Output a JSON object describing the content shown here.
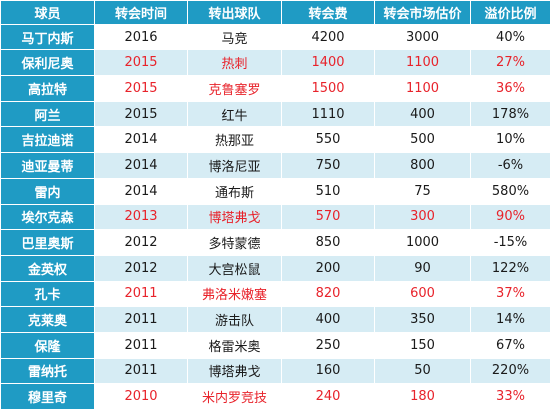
{
  "columns": {
    "player": "球员",
    "year": "转会时间",
    "club": "转出球队",
    "fee": "转会费",
    "market_value": "转会市场估价",
    "premium": "溢价比例"
  },
  "rows": [
    {
      "player": "马丁内斯",
      "year": "2016",
      "club": "马竞",
      "fee": "4200",
      "market_value": "3000",
      "premium": "40%",
      "highlight": false
    },
    {
      "player": "保利尼奥",
      "year": "2015",
      "club": "热刺",
      "fee": "1400",
      "market_value": "1100",
      "premium": "27%",
      "highlight": true
    },
    {
      "player": "高拉特",
      "year": "2015",
      "club": "克鲁塞罗",
      "fee": "1500",
      "market_value": "1100",
      "premium": "36%",
      "highlight": true
    },
    {
      "player": "阿兰",
      "year": "2015",
      "club": "红牛",
      "fee": "1110",
      "market_value": "400",
      "premium": "178%",
      "highlight": false
    },
    {
      "player": "吉拉迪诺",
      "year": "2014",
      "club": "热那亚",
      "fee": "550",
      "market_value": "500",
      "premium": "10%",
      "highlight": false
    },
    {
      "player": "迪亚曼蒂",
      "year": "2014",
      "club": "博洛尼亚",
      "fee": "750",
      "market_value": "800",
      "premium": "-6%",
      "highlight": false
    },
    {
      "player": "雷内",
      "year": "2014",
      "club": "通布斯",
      "fee": "510",
      "market_value": "75",
      "premium": "580%",
      "highlight": false
    },
    {
      "player": "埃尔克森",
      "year": "2013",
      "club": "博塔弗戈",
      "fee": "570",
      "market_value": "300",
      "premium": "90%",
      "highlight": true
    },
    {
      "player": "巴里奥斯",
      "year": "2012",
      "club": "多特蒙德",
      "fee": "850",
      "market_value": "1000",
      "premium": "-15%",
      "highlight": false
    },
    {
      "player": "金英权",
      "year": "2012",
      "club": "大宫松鼠",
      "fee": "200",
      "market_value": "90",
      "premium": "122%",
      "highlight": false
    },
    {
      "player": "孔卡",
      "year": "2011",
      "club": "弗洛米嫩塞",
      "fee": "820",
      "market_value": "600",
      "premium": "37%",
      "highlight": true
    },
    {
      "player": "克莱奥",
      "year": "2011",
      "club": "游击队",
      "fee": "400",
      "market_value": "350",
      "premium": "14%",
      "highlight": false
    },
    {
      "player": "保隆",
      "year": "2011",
      "club": "格雷米奥",
      "fee": "250",
      "market_value": "150",
      "premium": "67%",
      "highlight": false
    },
    {
      "player": "雷纳托",
      "year": "2011",
      "club": "博塔弗戈",
      "fee": "160",
      "market_value": "50",
      "premium": "220%",
      "highlight": false
    },
    {
      "player": "穆里奇",
      "year": "2010",
      "club": "米内罗竞技",
      "fee": "240",
      "market_value": "180",
      "premium": "33%",
      "highlight": true
    }
  ],
  "colors": {
    "header_bg": "#1f9bc4",
    "header_text": "#ffffff",
    "alt_row_bg": "#d6ecf4",
    "highlight_text": "#e8232b"
  }
}
